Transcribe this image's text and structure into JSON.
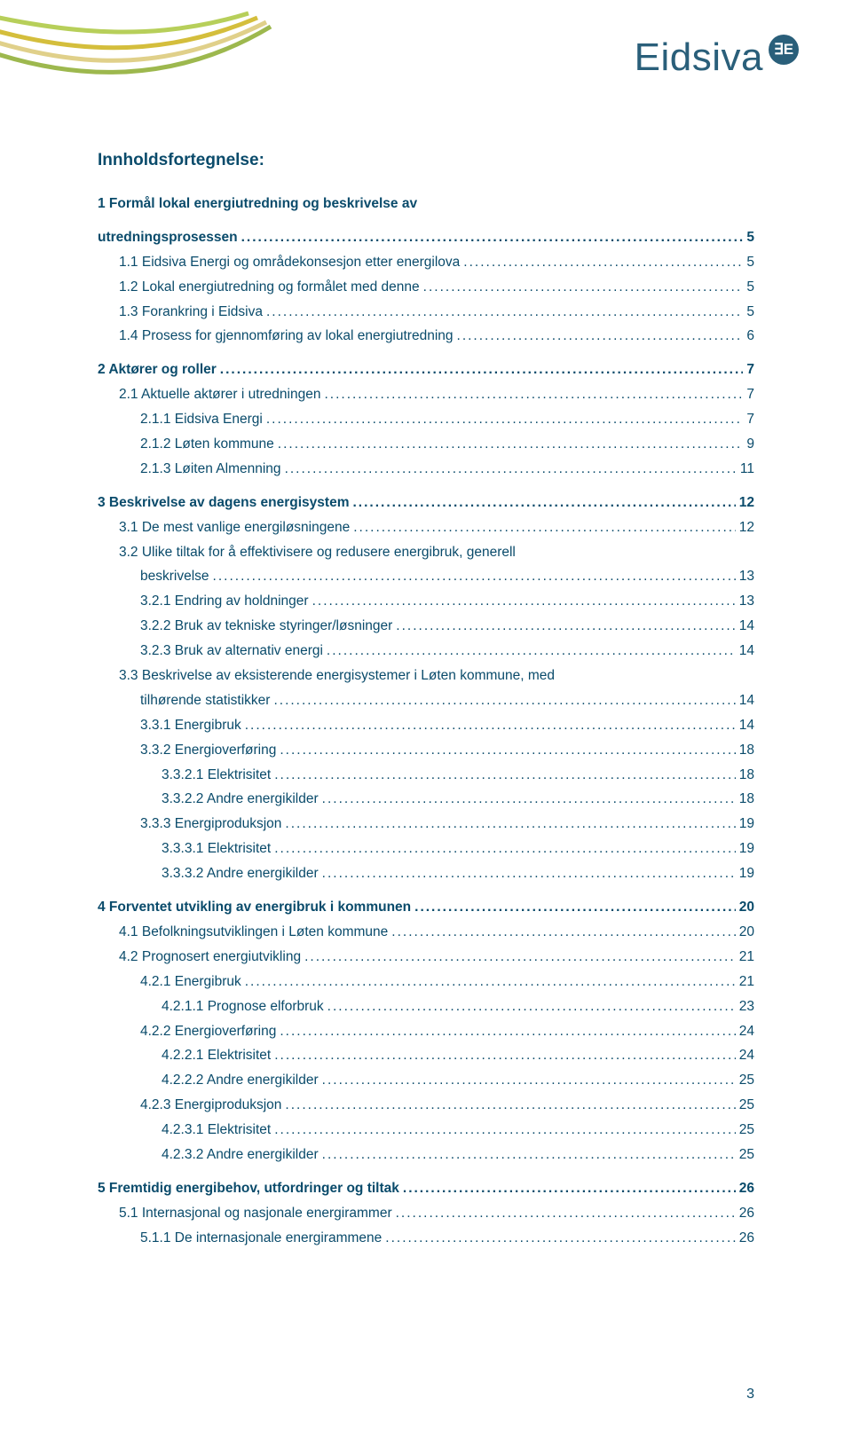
{
  "brand": {
    "name": "Eidsiva",
    "badge": "∃E",
    "text_color": "#2a5f7a",
    "badge_bg": "#2a5f7a"
  },
  "swoosh_colors": [
    "#b7cf5a",
    "#d4be3c",
    "#e0d08a",
    "#9db84e"
  ],
  "title": "Innholdsfortegnelse:",
  "page_number": "3",
  "text_color": "#0a4b6b",
  "background_color": "#ffffff",
  "font_family": "Verdana",
  "toc": [
    {
      "label": "1  Formål lokal energiutredning og beskrivelse av",
      "page": "",
      "level": 1,
      "bold": true,
      "no_dots": true
    },
    {
      "label": "utredningsprosessen",
      "page": "5",
      "level": 1,
      "bold": true
    },
    {
      "label": "1.1  Eidsiva Energi og områdekonsesjon etter energilova",
      "page": "5",
      "level": 2
    },
    {
      "label": "1.2  Lokal energiutredning og formålet med denne",
      "page": "5",
      "level": 2
    },
    {
      "label": "1.3  Forankring i Eidsiva",
      "page": "5",
      "level": 2
    },
    {
      "label": "1.4  Prosess for gjennomføring av lokal energiutredning",
      "page": "6",
      "level": 2
    },
    {
      "label": "2  Aktører og roller",
      "page": "7",
      "level": 1,
      "bold": true
    },
    {
      "label": "2.1  Aktuelle aktører i utredningen",
      "page": "7",
      "level": 2
    },
    {
      "label": "2.1.1  Eidsiva Energi",
      "page": "7",
      "level": 3
    },
    {
      "label": "2.1.2  Løten kommune",
      "page": "9",
      "level": 3
    },
    {
      "label": "2.1.3  Løiten Almenning",
      "page": "11",
      "level": 3
    },
    {
      "label": "3  Beskrivelse av dagens energisystem",
      "page": "12",
      "level": 1,
      "bold": true
    },
    {
      "label": "3.1  De mest vanlige energiløsningene",
      "page": "12",
      "level": 2
    },
    {
      "label": "3.2  Ulike tiltak for å effektivisere og redusere energibruk, generell",
      "page": "",
      "level": 2,
      "no_dots": true
    },
    {
      "label": "beskrivelse",
      "page": "13",
      "level": 2,
      "continuation": true
    },
    {
      "label": "3.2.1  Endring av holdninger",
      "page": "13",
      "level": 3
    },
    {
      "label": "3.2.2  Bruk av tekniske styringer/løsninger",
      "page": "14",
      "level": 3
    },
    {
      "label": "3.2.3  Bruk av alternativ energi",
      "page": "14",
      "level": 3
    },
    {
      "label": "3.3  Beskrivelse av eksisterende energisystemer i Løten kommune, med",
      "page": "",
      "level": 2,
      "no_dots": true
    },
    {
      "label": "tilhørende statistikker",
      "page": "14",
      "level": 2,
      "continuation": true
    },
    {
      "label": "3.3.1  Energibruk",
      "page": "14",
      "level": 3
    },
    {
      "label": "3.3.2  Energioverføring",
      "page": "18",
      "level": 3
    },
    {
      "label": "3.3.2.1 Elektrisitet",
      "page": "18",
      "level": 4
    },
    {
      "label": "3.3.2.2 Andre energikilder",
      "page": "18",
      "level": 4
    },
    {
      "label": "3.3.3  Energiproduksjon",
      "page": "19",
      "level": 3
    },
    {
      "label": "3.3.3.1 Elektrisitet",
      "page": "19",
      "level": 4
    },
    {
      "label": "3.3.3.2 Andre energikilder",
      "page": "19",
      "level": 4
    },
    {
      "label": "4  Forventet utvikling av energibruk i kommunen",
      "page": "20",
      "level": 1,
      "bold": true
    },
    {
      "label": "4.1  Befolkningsutviklingen i Løten kommune",
      "page": "20",
      "level": 2
    },
    {
      "label": "4.2  Prognosert energiutvikling",
      "page": "21",
      "level": 2
    },
    {
      "label": "4.2.1  Energibruk",
      "page": "21",
      "level": 3
    },
    {
      "label": "4.2.1.1 Prognose elforbruk",
      "page": "23",
      "level": 4
    },
    {
      "label": "4.2.2  Energioverføring",
      "page": "24",
      "level": 3
    },
    {
      "label": "4.2.2.1 Elektrisitet",
      "page": "24",
      "level": 4
    },
    {
      "label": "4.2.2.2 Andre energikilder",
      "page": "25",
      "level": 4
    },
    {
      "label": "4.2.3  Energiproduksjon",
      "page": "25",
      "level": 3
    },
    {
      "label": "4.2.3.1 Elektrisitet",
      "page": "25",
      "level": 4
    },
    {
      "label": "4.2.3.2 Andre energikilder",
      "page": "25",
      "level": 4
    },
    {
      "label": "5  Fremtidig energibehov, utfordringer og tiltak",
      "page": "26",
      "level": 1,
      "bold": true
    },
    {
      "label": "5.1  Internasjonal og nasjonale energirammer",
      "page": "26",
      "level": 2
    },
    {
      "label": "5.1.1  De internasjonale energirammene",
      "page": "26",
      "level": 3
    }
  ]
}
